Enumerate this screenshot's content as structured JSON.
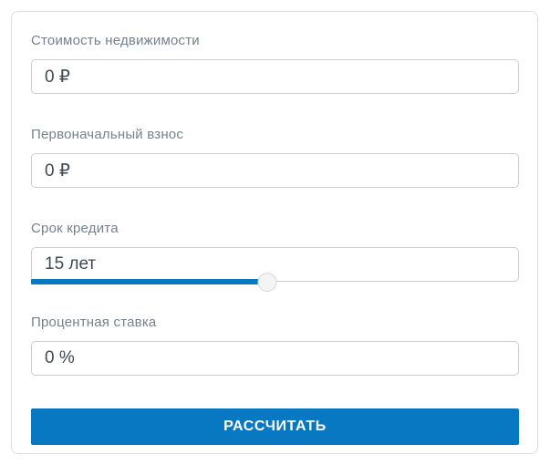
{
  "calculator": {
    "fields": [
      {
        "label": "Стоимость недвижимости",
        "value": "0 ₽"
      },
      {
        "label": "Первоначальный взнос",
        "value": "0 ₽"
      },
      {
        "label": "Срок кредита",
        "value": "15 лет",
        "slider_percent": 48.4
      },
      {
        "label": "Процентная ставка",
        "value": "0 %"
      }
    ],
    "submit_label": "РАССЧИТАТЬ"
  },
  "colors": {
    "accent_blue": "#0878c2",
    "label_gray": "#75818f",
    "input_text": "#3f4a56",
    "input_border": "#c9cdd1",
    "card_border": "#dcdee1",
    "thumb_fill": "#f4f4f4"
  }
}
